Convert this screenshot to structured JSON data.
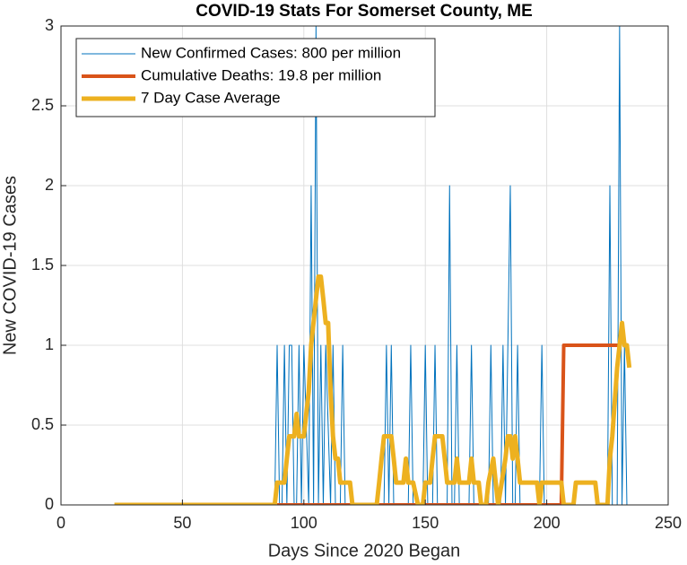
{
  "chart_data": {
    "type": "line",
    "title": "COVID-19 Stats For Somerset County, ME",
    "x_label": "Days Since 2020 Began",
    "y_label": "New COVID-19 Cases",
    "xlim": [
      0,
      250
    ],
    "xticks": [
      0,
      50,
      100,
      150,
      200,
      250
    ],
    "ylim": [
      0,
      3
    ],
    "yticks": [
      0,
      0.5,
      1,
      1.5,
      2,
      2.5,
      3
    ],
    "grid": true,
    "legend": "upper-left",
    "series": [
      {
        "name": "New Confirmed Cases: 800 per million",
        "color": "#0072bd",
        "width": 1,
        "x": [
          22,
          88,
          89,
          90,
          91,
          92,
          93,
          94,
          95,
          96,
          97,
          98,
          99,
          100,
          102,
          103,
          104,
          105,
          106,
          107,
          108,
          109,
          111,
          112,
          113,
          115,
          116,
          117,
          133,
          134,
          135,
          136,
          137,
          143,
          144,
          145,
          149,
          150,
          151,
          153,
          154,
          155,
          159,
          160,
          161,
          162,
          163,
          164,
          168,
          169,
          170,
          176,
          177,
          178,
          181,
          182,
          183,
          185,
          186,
          187,
          188,
          189,
          197,
          198,
          199,
          225,
          226,
          227,
          229,
          230,
          231,
          232,
          233,
          235
        ],
        "values": [
          0,
          0,
          1,
          0,
          0,
          1,
          0,
          1,
          1,
          0,
          0,
          1,
          0,
          1,
          0,
          2,
          0,
          3,
          0,
          1,
          0,
          1,
          0,
          1,
          0,
          0,
          1,
          0,
          0,
          1,
          0,
          1,
          0,
          0,
          1,
          0,
          0,
          1,
          0,
          0,
          1,
          0,
          0,
          2,
          0,
          0,
          1,
          0,
          0,
          1,
          0,
          0,
          1,
          0,
          0,
          1,
          0,
          2,
          0,
          0,
          1,
          0,
          0,
          1,
          0,
          0,
          2,
          0,
          0,
          3,
          0,
          1,
          0,
          0
        ]
      },
      {
        "name": "Cumulative Deaths: 19.8 per million",
        "color": "#d95319",
        "width": 4,
        "x": [
          89,
          206,
          207,
          230
        ],
        "values": [
          0,
          0,
          1,
          1
        ]
      },
      {
        "name": "7 Day Case Average",
        "color": "#edb120",
        "width": 5,
        "x": [
          22,
          88,
          89,
          92,
          93,
          94,
          96,
          97,
          98,
          100,
          101,
          102,
          103,
          105,
          106,
          107,
          108,
          109,
          110,
          111,
          112,
          113,
          114,
          115,
          119,
          120,
          130,
          131,
          132,
          133,
          136,
          137,
          138,
          141,
          142,
          143,
          145,
          147,
          149,
          150,
          152,
          153,
          154,
          157,
          158,
          159,
          162,
          163,
          164,
          166,
          168,
          169,
          170,
          172,
          173,
          175,
          176,
          178,
          179,
          180,
          183,
          184,
          185,
          186,
          187,
          188,
          189,
          196,
          197,
          198,
          206,
          207,
          211,
          212,
          220,
          221,
          225,
          226,
          227,
          229,
          231,
          232,
          233,
          234
        ],
        "values": [
          0,
          0,
          0.14,
          0.14,
          0.29,
          0.43,
          0.43,
          0.57,
          0.43,
          0.43,
          0.57,
          0.71,
          1.0,
          1.29,
          1.43,
          1.43,
          1.29,
          1.14,
          1.14,
          0.71,
          0.43,
          0.29,
          0.29,
          0.14,
          0.14,
          0,
          0,
          0.14,
          0.29,
          0.43,
          0.43,
          0.29,
          0.14,
          0.14,
          0.29,
          0.14,
          0.14,
          0,
          0,
          0.14,
          0.14,
          0.29,
          0.43,
          0.43,
          0.29,
          0.14,
          0.14,
          0.29,
          0.14,
          0.14,
          0.14,
          0.29,
          0.14,
          0.14,
          0,
          0,
          0.14,
          0.29,
          0.14,
          0,
          0.29,
          0.43,
          0.43,
          0.29,
          0.43,
          0.29,
          0.14,
          0.14,
          0,
          0.14,
          0.14,
          0,
          0,
          0.14,
          0.14,
          0,
          0,
          0.29,
          0.43,
          0.86,
          1.14,
          1.0,
          1.0,
          0.86
        ]
      }
    ]
  }
}
